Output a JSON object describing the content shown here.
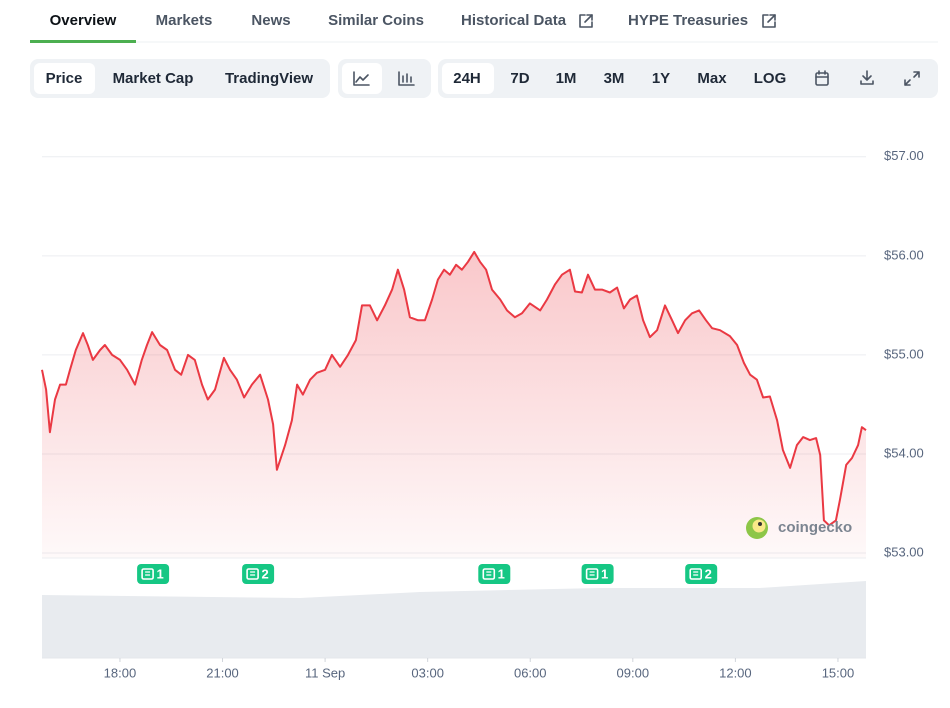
{
  "tabs": [
    "Overview",
    "Markets",
    "News",
    "Similar Coins",
    "Historical Data",
    "HYPE Treasuries"
  ],
  "views": [
    "Price",
    "Market Cap",
    "TradingView"
  ],
  "ranges": [
    "24H",
    "7D",
    "1M",
    "3M",
    "1Y",
    "Max"
  ],
  "log_label": "LOG",
  "watermark": "coingecko",
  "chart_data": {
    "type": "line",
    "x": [
      -8.28,
      -8.16,
      -8.05,
      -7.9,
      -7.75,
      -7.58,
      -7.46,
      -7.29,
      -7.08,
      -6.94,
      -6.79,
      -6.58,
      -6.44,
      -6.23,
      -6.0,
      -5.79,
      -5.56,
      -5.36,
      -5.21,
      -5.06,
      -4.83,
      -4.62,
      -4.39,
      -4.21,
      -4.01,
      -3.81,
      -3.6,
      -3.43,
      -3.22,
      -2.96,
      -2.78,
      -2.58,
      -2.37,
      -2.14,
      -1.9,
      -1.67,
      -1.52,
      -1.41,
      -1.17,
      -0.97,
      -0.82,
      -0.65,
      -0.44,
      -0.24,
      0.0,
      0.2,
      0.44,
      0.67,
      0.9,
      1.08,
      1.31,
      1.52,
      1.75,
      1.96,
      2.13,
      2.31,
      2.48,
      2.72,
      2.92,
      3.13,
      3.3,
      3.48,
      3.65,
      3.83,
      4.0,
      4.18,
      4.36,
      4.53,
      4.71,
      4.88,
      5.12,
      5.32,
      5.55,
      5.76,
      5.99,
      6.29,
      6.49,
      6.72,
      6.93,
      7.16,
      7.31,
      7.51,
      7.69,
      7.89,
      8.1,
      8.33,
      8.54,
      8.74,
      8.92,
      9.12,
      9.3,
      9.5,
      9.71,
      9.94,
      10.15,
      10.32,
      10.53,
      10.73,
      10.94,
      11.14,
      11.32,
      11.55,
      11.84,
      12.05,
      12.25,
      12.43,
      12.63,
      12.81,
      13.01,
      13.22,
      13.39,
      13.6,
      13.8,
      13.98,
      14.18,
      14.36,
      14.48,
      14.59,
      14.74,
      14.94,
      15.06,
      15.24,
      15.41,
      15.59,
      15.7,
      15.82
    ],
    "series": [
      {
        "name": "Price",
        "color": "#ea3943",
        "values": [
          54.85,
          54.65,
          54.22,
          54.55,
          54.7,
          54.7,
          54.85,
          55.05,
          55.22,
          55.1,
          54.95,
          55.05,
          55.1,
          55.0,
          54.95,
          54.85,
          54.7,
          54.95,
          55.1,
          55.23,
          55.1,
          55.05,
          54.85,
          54.8,
          55.0,
          54.95,
          54.7,
          54.55,
          54.65,
          54.97,
          54.85,
          54.75,
          54.57,
          54.7,
          54.8,
          54.55,
          54.3,
          53.84,
          54.09,
          54.34,
          54.7,
          54.6,
          54.75,
          54.82,
          54.85,
          55.0,
          54.88,
          55.0,
          55.15,
          55.5,
          55.5,
          55.35,
          55.5,
          55.66,
          55.86,
          55.66,
          55.38,
          55.35,
          55.35,
          55.56,
          55.76,
          55.86,
          55.81,
          55.91,
          55.86,
          55.94,
          56.04,
          55.94,
          55.86,
          55.66,
          55.56,
          55.45,
          55.38,
          55.42,
          55.52,
          55.45,
          55.56,
          55.71,
          55.81,
          55.86,
          55.64,
          55.63,
          55.81,
          55.66,
          55.66,
          55.63,
          55.68,
          55.47,
          55.56,
          55.6,
          55.35,
          55.18,
          55.25,
          55.5,
          55.35,
          55.22,
          55.35,
          55.42,
          55.45,
          55.35,
          55.27,
          55.25,
          55.19,
          55.1,
          54.92,
          54.8,
          54.75,
          54.57,
          54.58,
          54.34,
          54.04,
          53.86,
          54.09,
          54.17,
          54.14,
          54.16,
          53.99,
          53.33,
          53.28,
          53.33,
          53.54,
          53.89,
          53.96,
          54.09,
          54.27,
          54.24
        ]
      }
    ],
    "xlim": [
      -8.28,
      15.82
    ],
    "xticks": [
      {
        "value": -6,
        "label": "18:00"
      },
      {
        "value": -3,
        "label": "21:00"
      },
      {
        "value": 0,
        "label": "11 Sep"
      },
      {
        "value": 3,
        "label": "03:00"
      },
      {
        "value": 6,
        "label": "06:00"
      },
      {
        "value": 9,
        "label": "09:00"
      },
      {
        "value": 12,
        "label": "12:00"
      },
      {
        "value": 15,
        "label": "15:00"
      }
    ],
    "ylim": [
      52.95,
      57.2
    ],
    "yticks": [
      {
        "value": 53,
        "label": "$53.00"
      },
      {
        "value": 54,
        "label": "$54.00"
      },
      {
        "value": 55,
        "label": "$55.00"
      },
      {
        "value": 56,
        "label": "$56.00"
      },
      {
        "value": 57,
        "label": "$57.00"
      }
    ],
    "grid": true,
    "news_markers": [
      {
        "x": -5.03,
        "count": 1
      },
      {
        "x": -1.96,
        "count": 2
      },
      {
        "x": 4.95,
        "count": 1
      },
      {
        "x": 7.97,
        "count": 1
      },
      {
        "x": 11.0,
        "count": 2
      }
    ]
  }
}
